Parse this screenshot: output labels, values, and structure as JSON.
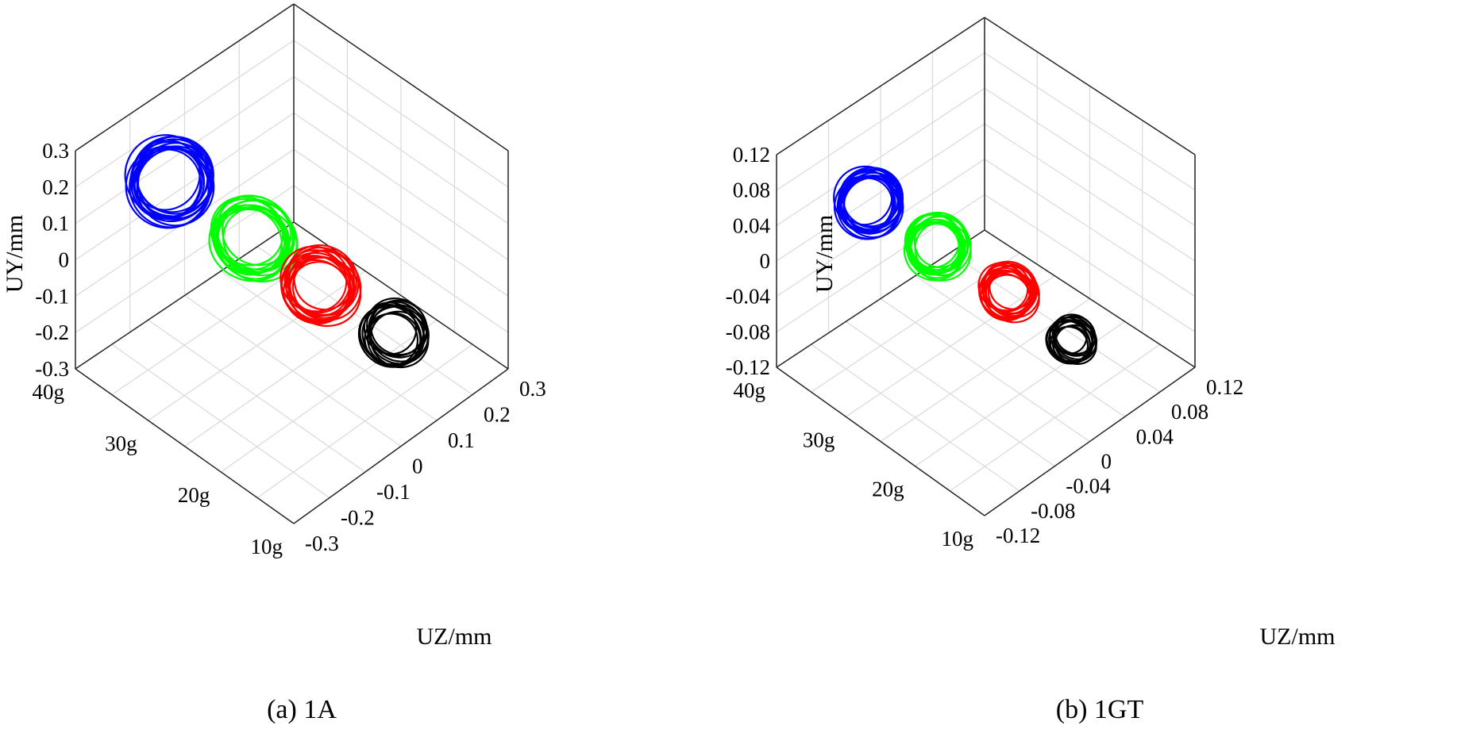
{
  "figure": {
    "panels": [
      {
        "caption": "(a) 1A"
      },
      {
        "caption": "(b) 1GT"
      }
    ]
  },
  "chart_data": [
    {
      "type": "line3d",
      "title": "(a) 1A",
      "xlabel": "UZ/mm",
      "ylabel": "UY/mm",
      "zlabel": "",
      "z_ticks": [
        "0.3",
        "0.2",
        "0.1",
        "0",
        "-0.1",
        "-0.2",
        "-0.3"
      ],
      "y_ticks": [
        "0.3",
        "0.2",
        "0.1",
        "0",
        "-0.1",
        "-0.2",
        "-0.3"
      ],
      "depth_ticks": [
        "40g",
        "30g",
        "20g",
        "10g"
      ],
      "ylim": [
        -0.3,
        0.3
      ],
      "zlim": [
        -0.3,
        0.3
      ],
      "grid": true,
      "series": [
        {
          "name": "40g",
          "color": "#0000ff",
          "center": [
            -0.02,
            0.2
          ],
          "semi_major": 0.18,
          "semi_minor": 0.09,
          "loops": 14
        },
        {
          "name": "30g",
          "color": "#00ff00",
          "center": [
            -0.02,
            0.08
          ],
          "semi_major": 0.16,
          "semi_minor": 0.09,
          "loops": 14
        },
        {
          "name": "20g",
          "color": "#ff0000",
          "center": [
            0.0,
            -0.02
          ],
          "semi_major": 0.15,
          "semi_minor": 0.08,
          "loops": 14
        },
        {
          "name": "10g",
          "color": "#000000",
          "center": [
            0.0,
            -0.12
          ],
          "semi_major": 0.13,
          "semi_minor": 0.07,
          "loops": 12
        }
      ]
    },
    {
      "type": "line3d",
      "title": "(b) 1GT",
      "xlabel": "UZ/mm",
      "ylabel": "UY/mm",
      "zlabel": "",
      "z_ticks": [
        "0.12",
        "0.08",
        "0.04",
        "0",
        "-0.04",
        "-0.08",
        "-0.12"
      ],
      "y_ticks": [
        "0.12",
        "0.08",
        "0.04",
        "0",
        "-0.04",
        "-0.08",
        "-0.12"
      ],
      "depth_ticks": [
        "40g",
        "30g",
        "20g",
        "10g"
      ],
      "ylim": [
        -0.12,
        0.12
      ],
      "zlim": [
        -0.12,
        0.12
      ],
      "grid": true,
      "series": [
        {
          "name": "40g",
          "color": "#0000ff",
          "center": [
            0.0,
            0.06
          ],
          "semi_major": 0.07,
          "semi_minor": 0.035,
          "loops": 14
        },
        {
          "name": "30g",
          "color": "#00ff00",
          "center": [
            0.0,
            0.02
          ],
          "semi_major": 0.065,
          "semi_minor": 0.033,
          "loops": 14
        },
        {
          "name": "20g",
          "color": "#ff0000",
          "center": [
            0.0,
            -0.02
          ],
          "semi_major": 0.055,
          "semi_minor": 0.03,
          "loops": 14
        },
        {
          "name": "10g",
          "color": "#000000",
          "center": [
            0.0,
            -0.05
          ],
          "semi_major": 0.045,
          "semi_minor": 0.025,
          "loops": 12
        }
      ]
    }
  ]
}
